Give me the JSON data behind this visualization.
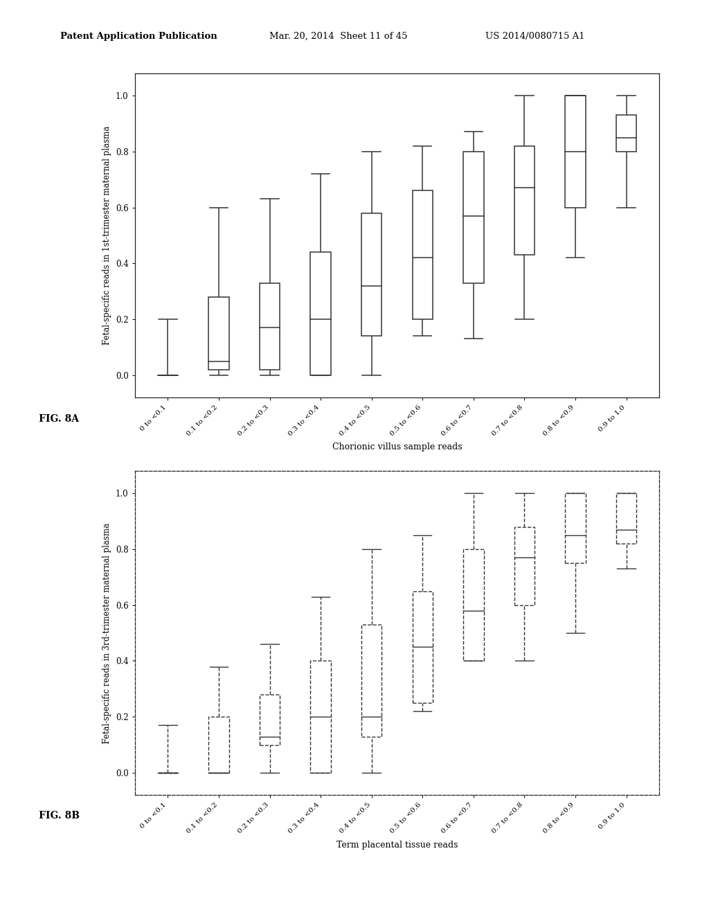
{
  "header_left": "Patent Application Publication",
  "header_mid": "Mar. 20, 2014  Sheet 11 of 45",
  "header_right": "US 2014/0080715 A1",
  "fig_a_label": "FIG. 8A",
  "fig_b_label": "FIG. 8B",
  "fig_a_xlabel": "Chorionic villus sample reads",
  "fig_b_xlabel": "Term placental tissue reads",
  "fig_a_ylabel": "Fetal-specific reads in 1st-trimester maternal plasma",
  "fig_b_ylabel": "Fetal-specific reads in 3rd-trimester maternal plasma",
  "categories": [
    "0 to <0.1",
    "0.1 to <0.2",
    "0.2 to <0.3",
    "0.3 to <0.4",
    "0.4 to <0.5",
    "0.5 to <0.6",
    "0.6 to <0.7",
    "0.7 to <0.8",
    "0.8 to <0.9",
    "0.9 to 1.0"
  ],
  "fig_a_boxes": [
    {
      "whisker_low": 0.0,
      "q1": 0.0,
      "median": 0.0,
      "q3": 0.0,
      "whisker_high": 0.2
    },
    {
      "whisker_low": 0.0,
      "q1": 0.02,
      "median": 0.05,
      "q3": 0.28,
      "whisker_high": 0.6
    },
    {
      "whisker_low": 0.0,
      "q1": 0.02,
      "median": 0.17,
      "q3": 0.33,
      "whisker_high": 0.63
    },
    {
      "whisker_low": 0.0,
      "q1": 0.0,
      "median": 0.2,
      "q3": 0.44,
      "whisker_high": 0.72
    },
    {
      "whisker_low": 0.0,
      "q1": 0.14,
      "median": 0.32,
      "q3": 0.58,
      "whisker_high": 0.8
    },
    {
      "whisker_low": 0.14,
      "q1": 0.2,
      "median": 0.42,
      "q3": 0.66,
      "whisker_high": 0.82
    },
    {
      "whisker_low": 0.13,
      "q1": 0.33,
      "median": 0.57,
      "q3": 0.8,
      "whisker_high": 0.87
    },
    {
      "whisker_low": 0.2,
      "q1": 0.43,
      "median": 0.67,
      "q3": 0.82,
      "whisker_high": 1.0
    },
    {
      "whisker_low": 0.42,
      "q1": 0.6,
      "median": 0.8,
      "q3": 1.0,
      "whisker_high": 1.0
    },
    {
      "whisker_low": 0.6,
      "q1": 0.8,
      "median": 0.85,
      "q3": 0.93,
      "whisker_high": 1.0
    }
  ],
  "fig_b_boxes": [
    {
      "whisker_low": 0.0,
      "q1": 0.0,
      "median": 0.0,
      "q3": 0.0,
      "whisker_high": 0.17
    },
    {
      "whisker_low": 0.0,
      "q1": 0.0,
      "median": 0.0,
      "q3": 0.2,
      "whisker_high": 0.38
    },
    {
      "whisker_low": 0.0,
      "q1": 0.1,
      "median": 0.13,
      "q3": 0.28,
      "whisker_high": 0.46
    },
    {
      "whisker_low": 0.0,
      "q1": 0.0,
      "median": 0.2,
      "q3": 0.4,
      "whisker_high": 0.63
    },
    {
      "whisker_low": 0.0,
      "q1": 0.13,
      "median": 0.2,
      "q3": 0.53,
      "whisker_high": 0.8
    },
    {
      "whisker_low": 0.22,
      "q1": 0.25,
      "median": 0.45,
      "q3": 0.65,
      "whisker_high": 0.85
    },
    {
      "whisker_low": 0.4,
      "q1": 0.4,
      "median": 0.58,
      "q3": 0.8,
      "whisker_high": 1.0
    },
    {
      "whisker_low": 0.4,
      "q1": 0.6,
      "median": 0.77,
      "q3": 0.88,
      "whisker_high": 1.0
    },
    {
      "whisker_low": 0.5,
      "q1": 0.75,
      "median": 0.85,
      "q3": 1.0,
      "whisker_high": 1.0
    },
    {
      "whisker_low": 0.73,
      "q1": 0.82,
      "median": 0.87,
      "q3": 1.0,
      "whisker_high": 1.0
    }
  ],
  "ylim": [
    -0.08,
    1.08
  ],
  "yticks": [
    0.0,
    0.2,
    0.4,
    0.6,
    0.8,
    1.0
  ],
  "background_color": "#ffffff",
  "box_color": "#ffffff",
  "box_edge_color": "#333333",
  "whisker_color": "#333333",
  "median_color": "#333333"
}
